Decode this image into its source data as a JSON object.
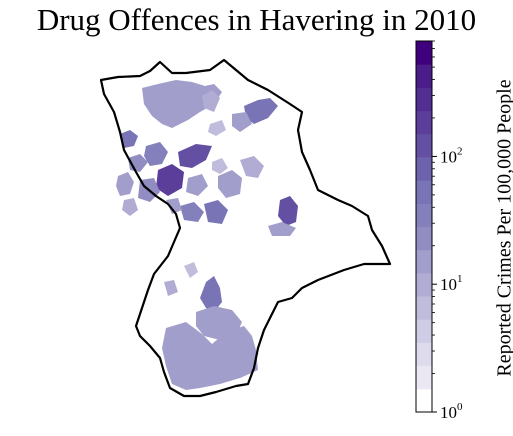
{
  "title": "Drug Offences in Havering in 2010",
  "colorbar": {
    "label": "Reported Crimes Per 100,000 People",
    "scale": "log",
    "range": [
      1,
      800
    ],
    "ticks": [
      {
        "base": "10",
        "exp": "0",
        "value": 1
      },
      {
        "base": "10",
        "exp": "1",
        "value": 10
      },
      {
        "base": "10",
        "exp": "2",
        "value": 100
      }
    ],
    "colors": [
      "#ffffff",
      "#ebe8f3",
      "#dddbec",
      "#cfcde5",
      "#c0bddc",
      "#b0acd4",
      "#a19ecb",
      "#918dc2",
      "#8480bb",
      "#7874b5",
      "#6d63ac",
      "#6350a3",
      "#5a3e9a",
      "#522d92",
      "#4a1d8a",
      "#3f007d"
    ]
  },
  "boundary_color": "#000000"
}
